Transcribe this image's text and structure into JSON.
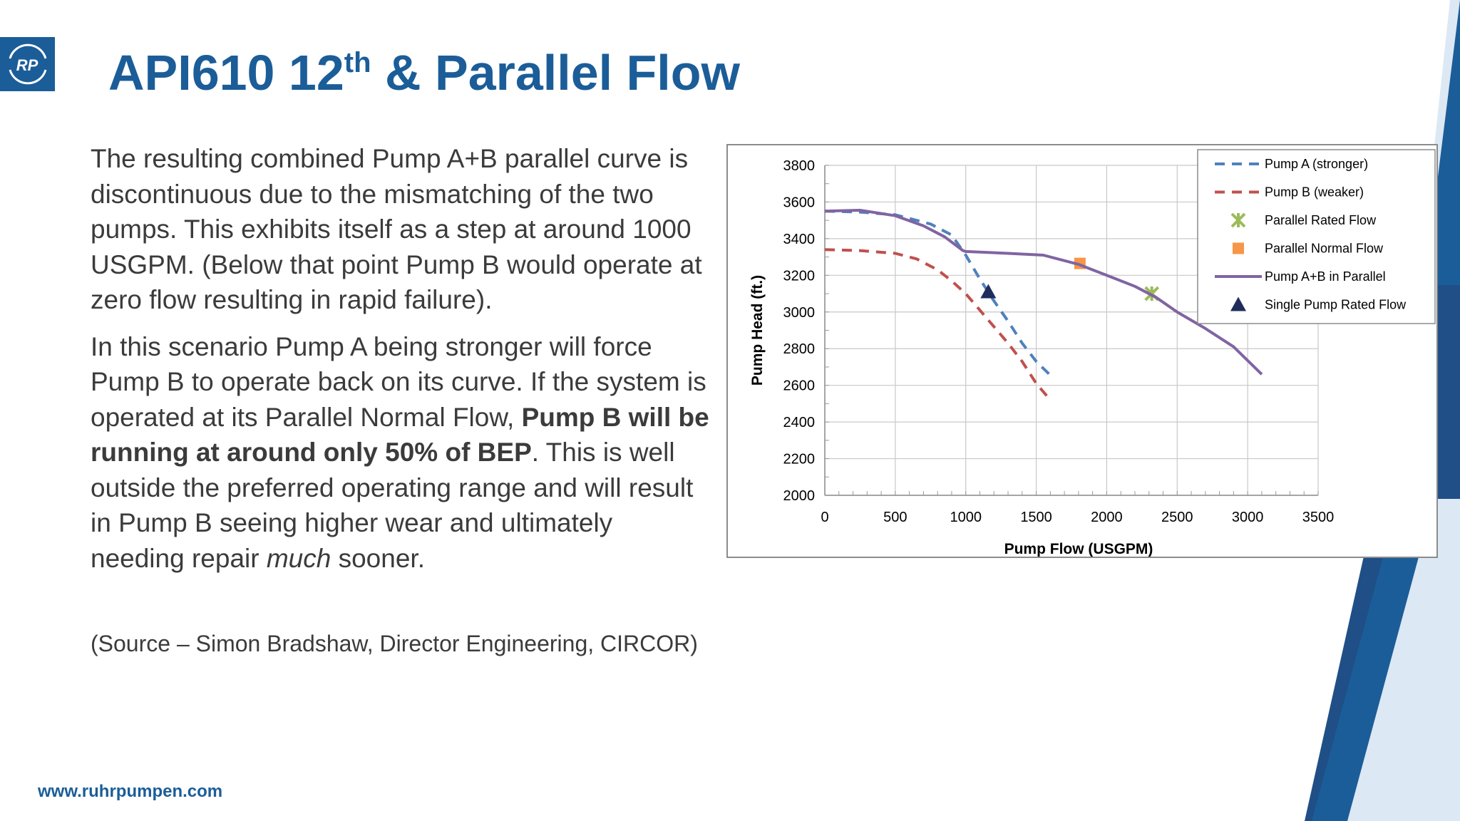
{
  "slide": {
    "logo_text": "RP",
    "title_main": "API610 12",
    "title_sup": "th",
    "title_rest": " & Parallel Flow",
    "para1": "The resulting combined Pump A+B parallel curve is discontinuous due to the mismatching of the two pumps. This exhibits itself as a step at around 1000 USGPM. (Below that point Pump B would operate at zero flow resulting in rapid failure).",
    "para2_a": "In this scenario Pump A being stronger will force Pump B to operate back on its curve. If the system is operated at its Parallel Normal Flow, ",
    "para2_bold": "Pump B will be running at around only 50% of BEP",
    "para2_b": ". This is well outside the preferred operating range and will result in Pump B seeing higher wear and ultimately needing repair ",
    "para2_italic": "much",
    "para2_c": " sooner.",
    "source": "(Source – Simon Bradshaw, Director Engineering, CIRCOR)",
    "url": "www.ruhrpumpen.com",
    "colors": {
      "brand_blue": "#1b5d98",
      "text_gray": "#3b3b3b",
      "light_blue": "#dce8f4"
    }
  },
  "chart_data": {
    "type": "line",
    "title": "",
    "xlabel": "Pump Flow (USGPM)",
    "ylabel": "Pump Head (ft.)",
    "xlim": [
      0,
      3500
    ],
    "ylim": [
      2000,
      3800
    ],
    "xticks": [
      0,
      500,
      1000,
      1500,
      2000,
      2500,
      3000,
      3500
    ],
    "yticks": [
      2000,
      2200,
      2400,
      2600,
      2800,
      3000,
      3200,
      3400,
      3600,
      3800
    ],
    "grid": true,
    "legend_position": "top-right",
    "series": [
      {
        "name": "Pump A (stronger)",
        "style": "dashed",
        "color": "#4f81bd",
        "points": [
          [
            0,
            3550
          ],
          [
            250,
            3545
          ],
          [
            500,
            3530
          ],
          [
            750,
            3480
          ],
          [
            900,
            3420
          ],
          [
            1000,
            3310
          ],
          [
            1100,
            3180
          ],
          [
            1200,
            3060
          ],
          [
            1300,
            2950
          ],
          [
            1400,
            2830
          ],
          [
            1500,
            2730
          ],
          [
            1620,
            2640
          ]
        ]
      },
      {
        "name": "Pump B (weaker)",
        "style": "dashed",
        "color": "#c0504d",
        "points": [
          [
            0,
            3340
          ],
          [
            250,
            3335
          ],
          [
            500,
            3320
          ],
          [
            650,
            3290
          ],
          [
            800,
            3230
          ],
          [
            900,
            3170
          ],
          [
            1000,
            3100
          ],
          [
            1100,
            3010
          ],
          [
            1200,
            2920
          ],
          [
            1300,
            2830
          ],
          [
            1400,
            2730
          ],
          [
            1500,
            2610
          ],
          [
            1600,
            2520
          ]
        ]
      },
      {
        "name": "Parallel Rated Flow",
        "style": "marker-x",
        "color": "#9bbb59",
        "points": [
          [
            2320,
            3100
          ]
        ]
      },
      {
        "name": "Parallel Normal Flow",
        "style": "marker-square",
        "color": "#f79646",
        "points": [
          [
            1810,
            3265
          ]
        ]
      },
      {
        "name": "Pump A+B in Parallel",
        "style": "solid",
        "color": "#8064a2",
        "points": [
          [
            0,
            3550
          ],
          [
            250,
            3555
          ],
          [
            500,
            3525
          ],
          [
            700,
            3470
          ],
          [
            850,
            3410
          ],
          [
            980,
            3335
          ],
          [
            1000,
            3330
          ],
          [
            1300,
            3320
          ],
          [
            1550,
            3310
          ],
          [
            1800,
            3260
          ],
          [
            2000,
            3200
          ],
          [
            2200,
            3140
          ],
          [
            2350,
            3080
          ],
          [
            2500,
            3000
          ],
          [
            2700,
            2910
          ],
          [
            2900,
            2810
          ],
          [
            3100,
            2660
          ]
        ]
      },
      {
        "name": "Single Pump Rated Flow",
        "style": "marker-triangle",
        "color": "#1f2d5c",
        "points": [
          [
            1160,
            3110
          ]
        ]
      }
    ]
  }
}
